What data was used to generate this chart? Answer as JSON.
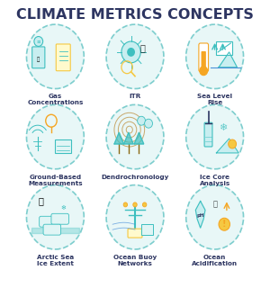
{
  "title": "CLIMATE METRICS CONCEPTS",
  "title_color": "#2d3561",
  "title_fontsize": 11.5,
  "background_color": "#ffffff",
  "icons": [
    {
      "label": "Gas\nConcentrations",
      "row": 0,
      "col": 0
    },
    {
      "label": "ITR",
      "row": 0,
      "col": 1
    },
    {
      "label": "Sea Level\nRise",
      "row": 0,
      "col": 2
    },
    {
      "label": "Ground-Based\nMeasurements",
      "row": 1,
      "col": 0
    },
    {
      "label": "Dendrochronology",
      "row": 1,
      "col": 1
    },
    {
      "label": "Ice Core\nAnalysis",
      "row": 1,
      "col": 2
    },
    {
      "label": "Arctic Sea\nIce Extent",
      "row": 2,
      "col": 0
    },
    {
      "label": "Ocean Buoy\nNetworks",
      "row": 2,
      "col": 1
    },
    {
      "label": "Ocean\nAcidification",
      "row": 2,
      "col": 2
    }
  ],
  "circle_fill": "#e8f7f7",
  "circle_edge": "#7ecece",
  "label_color": "#2d3561",
  "label_fontsize": 5.2,
  "icon_colors": {
    "teal": "#3dbfbf",
    "yellow": "#f5c842",
    "orange": "#f5a623",
    "blue": "#4a90d9",
    "green": "#5cb85c",
    "dark": "#2d3561"
  }
}
